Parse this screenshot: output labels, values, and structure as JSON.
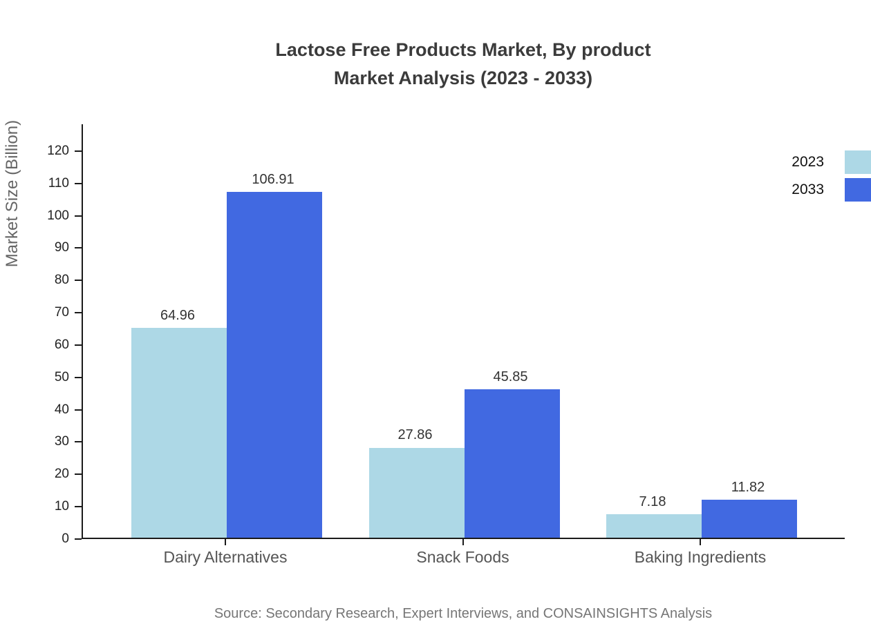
{
  "title": {
    "line1": "Lactose Free Products Market, By product",
    "line2": "Market Analysis (2023 - 2033)"
  },
  "source": "Source: Secondary Research, Expert Interviews, and CONSAINSIGHTS Analysis",
  "chart_data": {
    "type": "bar",
    "title": "Lactose Free Products Market, By product Market Analysis (2023 - 2033)",
    "categories": [
      "Dairy Alternatives",
      "Snack Foods",
      "Baking Ingredients"
    ],
    "series": [
      {
        "name": "2023",
        "color": "#ADD8E6",
        "values": [
          64.96,
          27.86,
          7.18
        ]
      },
      {
        "name": "2033",
        "color": "#4169E1",
        "values": [
          106.91,
          45.85,
          11.82
        ]
      }
    ],
    "value_labels": [
      "64.96",
      "106.91",
      "27.86",
      "45.85",
      "7.18",
      "11.82"
    ],
    "xlabel": "",
    "ylabel": "Market Size (Billion)",
    "ylim": [
      0,
      128.3
    ],
    "yticks": [
      0,
      10,
      20,
      30,
      40,
      50,
      60,
      70,
      80,
      90,
      100,
      110,
      120
    ],
    "grid": false,
    "legend_position": "top-right",
    "axis_color": "#1a1a1a"
  }
}
